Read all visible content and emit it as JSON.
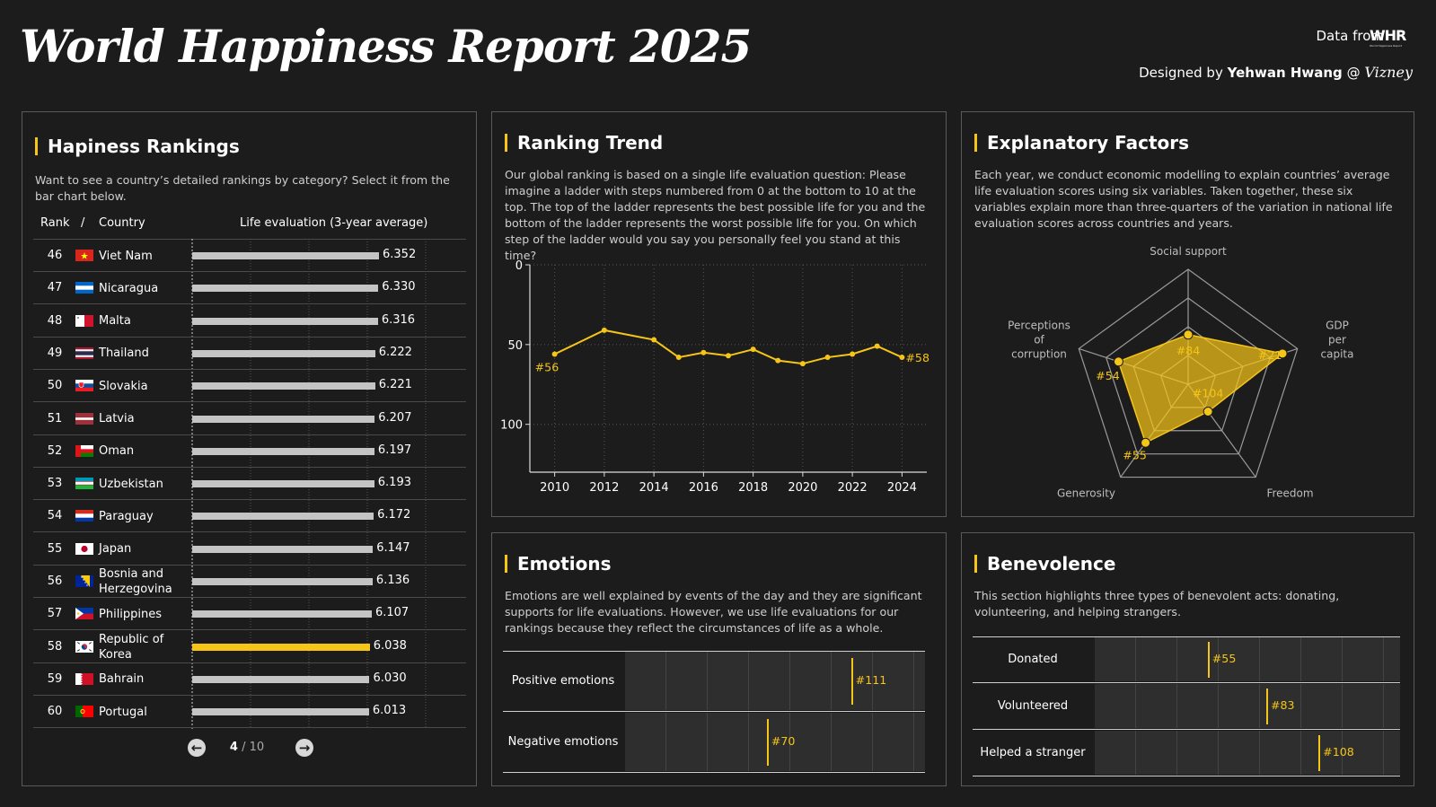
{
  "header": {
    "title": "World Happiness Report 2025",
    "data_from": "Data from",
    "logo_text": "WHR",
    "logo_sub": "World Happiness Report",
    "designed_by": "Designed by",
    "designer": "Yehwan Hwang",
    "at": "@",
    "brand": "Vizney"
  },
  "colors": {
    "accent": "#f5c518",
    "bar": "#c4c4c4",
    "panel_border": "#5a5a5a",
    "background": "#1c1c1c"
  },
  "rankings": {
    "title": "Hapiness Rankings",
    "description": "Want to see a country’s detailed rankings by category? Select it from the bar chart below.",
    "col_rank": "Rank",
    "col_sep": "/",
    "col_country": "Country",
    "col_value": "Life evaluation (3-year average)",
    "page_current": "4",
    "page_total": "/ 10",
    "prev_icon": "arrow-left-circle-icon",
    "next_icon": "arrow-right-circle-icon",
    "rows": [
      {
        "rank": "46",
        "country": "Viet Nam",
        "value": 6.352,
        "value_text": "6.352",
        "flag": "vietnam",
        "highlight": false
      },
      {
        "rank": "47",
        "country": "Nicaragua",
        "value": 6.33,
        "value_text": "6.330",
        "flag": "nicaragua",
        "highlight": false
      },
      {
        "rank": "48",
        "country": "Malta",
        "value": 6.316,
        "value_text": "6.316",
        "flag": "malta",
        "highlight": false
      },
      {
        "rank": "49",
        "country": "Thailand",
        "value": 6.222,
        "value_text": "6.222",
        "flag": "thailand",
        "highlight": false
      },
      {
        "rank": "50",
        "country": "Slovakia",
        "value": 6.221,
        "value_text": "6.221",
        "flag": "slovakia",
        "highlight": false
      },
      {
        "rank": "51",
        "country": "Latvia",
        "value": 6.207,
        "value_text": "6.207",
        "flag": "latvia",
        "highlight": false
      },
      {
        "rank": "52",
        "country": "Oman",
        "value": 6.197,
        "value_text": "6.197",
        "flag": "oman",
        "highlight": false
      },
      {
        "rank": "53",
        "country": "Uzbekistan",
        "value": 6.193,
        "value_text": "6.193",
        "flag": "uzbekistan",
        "highlight": false
      },
      {
        "rank": "54",
        "country": "Paraguay",
        "value": 6.172,
        "value_text": "6.172",
        "flag": "paraguay",
        "highlight": false
      },
      {
        "rank": "55",
        "country": "Japan",
        "value": 6.147,
        "value_text": "6.147",
        "flag": "japan",
        "highlight": false
      },
      {
        "rank": "56",
        "country": "Bosnia and Herzegovina",
        "value": 6.136,
        "value_text": "6.136",
        "flag": "bosnia",
        "highlight": false
      },
      {
        "rank": "57",
        "country": "Philippines",
        "value": 6.107,
        "value_text": "6.107",
        "flag": "philippines",
        "highlight": false
      },
      {
        "rank": "58",
        "country": "Republic of Korea",
        "value": 6.038,
        "value_text": "6.038",
        "flag": "korea",
        "highlight": true
      },
      {
        "rank": "59",
        "country": "Bahrain",
        "value": 6.03,
        "value_text": "6.030",
        "flag": "bahrain",
        "highlight": false
      },
      {
        "rank": "60",
        "country": "Portugal",
        "value": 6.013,
        "value_text": "6.013",
        "flag": "portugal",
        "highlight": false
      }
    ]
  },
  "trend": {
    "title": "Ranking Trend",
    "description": "Our global ranking is based on a single life evaluation question: Please imagine a ladder with steps numbered from 0 at the bottom to 10 at the top. The top of the ladder represents the best possible life for you and the bottom of the ladder represents the worst possible life for you. On which step of the ladder would you say you personally feel you stand at this time?",
    "first_label": "#56",
    "last_label": "#58"
  },
  "factors": {
    "title": "Explanatory Factors",
    "description": "Each year, we conduct economic modelling to explain countries’ average life evaluation scores using six variables. Taken together, these six variables explain more than three-quarters of the variation in national life evaluation scores across countries and years.",
    "axes": [
      {
        "lines": [
          "Social support"
        ],
        "rank": 84,
        "label": "#84"
      },
      {
        "lines": [
          "GDP",
          "per",
          "capita"
        ],
        "rank": 21,
        "label": "#21"
      },
      {
        "lines": [
          "Freedom"
        ],
        "rank": 104,
        "label": "#104"
      },
      {
        "lines": [
          "Generosity"
        ],
        "rank": 55,
        "label": "#55"
      },
      {
        "lines": [
          "Perceptions",
          "of",
          "corruption"
        ],
        "rank": 54,
        "label": "#54"
      }
    ]
  },
  "emotions": {
    "title": "Emotions",
    "description": "Emotions are well explained by events of the day and they are significant supports for life evaluations. However, we use life evaluations for our rankings because they reflect the circumstances of life as a whole.",
    "rows": [
      {
        "label": "Positive emotions",
        "rank": 111,
        "rank_text": "#111"
      },
      {
        "label": "Negative emotions",
        "rank": 70,
        "rank_text": "#70"
      }
    ]
  },
  "benevolence": {
    "title": "Benevolence",
    "description": "This section highlights three types of benevolent acts: donating, volunteering, and helping strangers.",
    "rows": [
      {
        "label": "Donated",
        "rank": 55,
        "rank_text": "#55"
      },
      {
        "label": "Volunteered",
        "rank": 83,
        "rank_text": "#83"
      },
      {
        "label": "Helped a stranger",
        "rank": 108,
        "rank_text": "#108"
      }
    ]
  },
  "chart_data": [
    {
      "type": "bar",
      "title": "Hapiness Rankings",
      "xlabel": "Life evaluation (3-year average)",
      "categories": [
        "Viet Nam",
        "Nicaragua",
        "Malta",
        "Thailand",
        "Slovakia",
        "Latvia",
        "Oman",
        "Uzbekistan",
        "Paraguay",
        "Japan",
        "Bosnia and Herzegovina",
        "Philippines",
        "Republic of Korea",
        "Bahrain",
        "Portugal"
      ],
      "values": [
        6.352,
        6.33,
        6.316,
        6.222,
        6.221,
        6.207,
        6.197,
        6.193,
        6.172,
        6.147,
        6.136,
        6.107,
        6.038,
        6.03,
        6.013
      ],
      "orientation": "horizontal",
      "xlim": [
        0,
        6.352
      ]
    },
    {
      "type": "line",
      "title": "Ranking Trend",
      "x": [
        2010,
        2012,
        2014,
        2015,
        2016,
        2017,
        2018,
        2019,
        2020,
        2021,
        2022,
        2023,
        2024
      ],
      "y": [
        56,
        41,
        47,
        58,
        55,
        57,
        53,
        60,
        62,
        58,
        56,
        51,
        58
      ],
      "xlim": [
        2009,
        2025
      ],
      "ylim": [
        0,
        130
      ],
      "y_reversed": true,
      "xticks": [
        2010,
        2012,
        2014,
        2016,
        2018,
        2020,
        2022,
        2024
      ],
      "yticks": [
        0,
        50,
        100
      ],
      "grid": true
    },
    {
      "type": "radar",
      "title": "Explanatory Factors",
      "categories": [
        "Social support",
        "GDP per capita",
        "Freedom",
        "Generosity",
        "Perceptions of corruption"
      ],
      "values": [
        84,
        21,
        104,
        55,
        54
      ],
      "scale": "rank (lower is better, outer = better)",
      "rlim": [
        1,
        147
      ]
    },
    {
      "type": "strip",
      "title": "Emotions",
      "categories": [
        "Positive emotions",
        "Negative emotions"
      ],
      "values": [
        111,
        70
      ],
      "xlim": [
        1,
        147
      ]
    },
    {
      "type": "strip",
      "title": "Benevolence",
      "categories": [
        "Donated",
        "Volunteered",
        "Helped a stranger"
      ],
      "values": [
        55,
        83,
        108
      ],
      "xlim": [
        1,
        147
      ]
    }
  ]
}
